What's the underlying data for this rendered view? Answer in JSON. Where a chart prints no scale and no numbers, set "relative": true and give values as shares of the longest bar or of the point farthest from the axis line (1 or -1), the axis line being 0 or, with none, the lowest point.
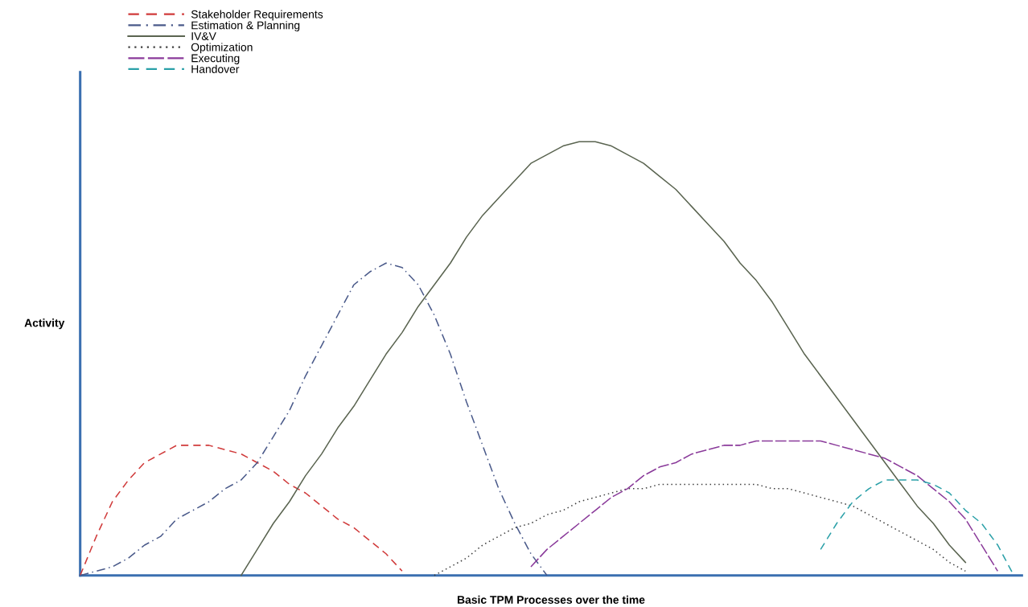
{
  "chart_data": {
    "type": "line",
    "relative": true,
    "xlabel": "Basic TPM Processes over the time",
    "ylabel": "Activity",
    "tick_labels": false,
    "grid": false,
    "legend": "top left",
    "marker": "none",
    "categories": [
      null,
      null,
      null,
      null,
      null,
      null,
      null,
      null,
      null,
      null,
      null,
      null,
      null,
      null,
      null,
      null,
      null,
      null,
      null,
      null,
      null,
      null,
      null,
      null,
      null,
      null,
      null,
      null,
      null,
      null,
      null,
      null,
      null,
      null,
      null,
      null,
      null,
      null,
      null,
      null,
      null,
      null,
      null,
      null,
      null,
      null,
      null,
      null,
      null,
      null,
      null,
      null,
      null,
      null,
      null,
      null,
      null,
      null,
      null
    ],
    "series": [
      {
        "name": "Stakeholder Requirements",
        "color": "#d03a3a",
        "line_style": "dashed",
        "values": [
          0,
          0.09,
          0.17,
          0.22,
          0.26,
          0.28,
          0.3,
          0.3,
          0.3,
          0.29,
          0.28,
          0.26,
          0.24,
          0.21,
          0.19,
          0.16,
          0.13,
          0.11,
          0.08,
          0.05,
          0.01,
          null,
          null,
          null,
          null,
          null,
          null,
          null,
          null,
          null,
          null,
          null,
          null,
          null,
          null,
          null,
          null,
          null,
          null,
          null,
          null,
          null,
          null,
          null,
          null,
          null,
          null,
          null,
          null,
          null,
          null,
          null,
          null,
          null,
          null,
          null,
          null,
          null,
          null
        ]
      },
      {
        "name": "Estimation & Planning",
        "color": "#4a5a8a",
        "line_style": "dashdot",
        "values": [
          0,
          0.01,
          0.02,
          0.04,
          0.07,
          0.09,
          0.13,
          0.15,
          0.17,
          0.2,
          0.22,
          0.26,
          0.32,
          0.38,
          0.46,
          0.53,
          0.6,
          0.67,
          0.7,
          0.72,
          0.71,
          0.67,
          0.6,
          0.51,
          0.4,
          0.3,
          0.2,
          0.12,
          0.05,
          0,
          null,
          null,
          null,
          null,
          null,
          null,
          null,
          null,
          null,
          null,
          null,
          null,
          null,
          null,
          null,
          null,
          null,
          null,
          null,
          null,
          null,
          null,
          null,
          null,
          null,
          null,
          null,
          null,
          null
        ]
      },
      {
        "name": "IV&V",
        "color": "#5a6450",
        "line_style": "solid",
        "values": [
          null,
          null,
          null,
          null,
          null,
          null,
          null,
          null,
          null,
          null,
          0,
          0.06,
          0.12,
          0.17,
          0.23,
          0.28,
          0.34,
          0.39,
          0.45,
          0.51,
          0.56,
          0.62,
          0.67,
          0.72,
          0.78,
          0.83,
          0.87,
          0.91,
          0.95,
          0.97,
          0.99,
          1.0,
          1.0,
          0.99,
          0.97,
          0.95,
          0.92,
          0.89,
          0.85,
          0.81,
          0.77,
          0.72,
          0.68,
          0.63,
          0.57,
          0.51,
          0.46,
          0.41,
          0.36,
          0.31,
          0.26,
          0.21,
          0.16,
          0.12,
          0.07,
          0.03,
          null,
          null,
          null
        ]
      },
      {
        "name": "Optimization",
        "color": "#404040",
        "line_style": "dotted",
        "values": [
          null,
          null,
          null,
          null,
          null,
          null,
          null,
          null,
          null,
          null,
          null,
          null,
          null,
          null,
          null,
          null,
          null,
          null,
          null,
          null,
          null,
          null,
          0,
          0.02,
          0.04,
          0.07,
          0.09,
          0.11,
          0.12,
          0.14,
          0.15,
          0.17,
          0.18,
          0.19,
          0.2,
          0.2,
          0.21,
          0.21,
          0.21,
          0.21,
          0.21,
          0.21,
          0.21,
          0.2,
          0.2,
          0.19,
          0.18,
          0.17,
          0.16,
          0.14,
          0.12,
          0.1,
          0.08,
          0.06,
          0.03,
          0.01,
          null,
          null,
          null
        ]
      },
      {
        "name": "Executing",
        "color": "#8a3a9a",
        "line_style": "longdash",
        "values": [
          null,
          null,
          null,
          null,
          null,
          null,
          null,
          null,
          null,
          null,
          null,
          null,
          null,
          null,
          null,
          null,
          null,
          null,
          null,
          null,
          null,
          null,
          null,
          null,
          null,
          null,
          null,
          null,
          0.02,
          0.06,
          0.09,
          0.12,
          0.15,
          0.18,
          0.2,
          0.23,
          0.25,
          0.26,
          0.28,
          0.29,
          0.3,
          0.3,
          0.31,
          0.31,
          0.31,
          0.31,
          0.31,
          0.3,
          0.29,
          0.28,
          0.27,
          0.25,
          0.23,
          0.2,
          0.17,
          0.13,
          0.07,
          0.01,
          null
        ]
      },
      {
        "name": "Handover",
        "color": "#2aa0a8",
        "line_style": "dashed",
        "values": [
          null,
          null,
          null,
          null,
          null,
          null,
          null,
          null,
          null,
          null,
          null,
          null,
          null,
          null,
          null,
          null,
          null,
          null,
          null,
          null,
          null,
          null,
          null,
          null,
          null,
          null,
          null,
          null,
          null,
          null,
          null,
          null,
          null,
          null,
          null,
          null,
          null,
          null,
          null,
          null,
          null,
          null,
          null,
          null,
          null,
          null,
          0.06,
          0.12,
          0.17,
          0.2,
          0.22,
          0.22,
          0.22,
          0.21,
          0.19,
          0.15,
          0.12,
          0.07,
          0
        ]
      }
    ]
  }
}
